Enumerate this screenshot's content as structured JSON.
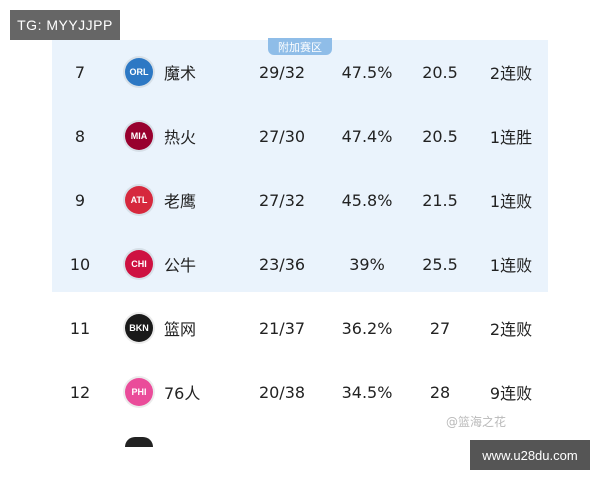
{
  "watermark_top": "TG: MYYJJPP",
  "playin_label": "附加赛区",
  "rows": [
    {
      "rank": "7",
      "logo_text": "ORL",
      "logo_color": "#2d78c4",
      "team": "魔术",
      "record": "29/32",
      "pct": "47.5%",
      "gb": "20.5",
      "streak": "2连败"
    },
    {
      "rank": "8",
      "logo_text": "MIA",
      "logo_color": "#98002e",
      "team": "热火",
      "record": "27/30",
      "pct": "47.4%",
      "gb": "20.5",
      "streak": "1连胜"
    },
    {
      "rank": "9",
      "logo_text": "ATL",
      "logo_color": "#d6283d",
      "team": "老鹰",
      "record": "27/32",
      "pct": "45.8%",
      "gb": "21.5",
      "streak": "1连败"
    },
    {
      "rank": "10",
      "logo_text": "CHI",
      "logo_color": "#ce1141",
      "team": "公牛",
      "record": "23/36",
      "pct": "39%",
      "gb": "25.5",
      "streak": "1连败"
    },
    {
      "rank": "11",
      "logo_text": "BKN",
      "logo_color": "#1a1a1a",
      "team": "篮网",
      "record": "21/37",
      "pct": "36.2%",
      "gb": "27",
      "streak": "2连败"
    },
    {
      "rank": "12",
      "logo_text": "PHI",
      "logo_color": "#ea4c9a",
      "team": "76人",
      "record": "20/38",
      "pct": "34.5%",
      "gb": "28",
      "streak": "9连败"
    }
  ],
  "watermark_corner": "@篮海之花",
  "site_badge": "www.u28du.com",
  "colors": {
    "playin_bg": "#eaf3fc",
    "playin_tag": "#8fbde8"
  }
}
